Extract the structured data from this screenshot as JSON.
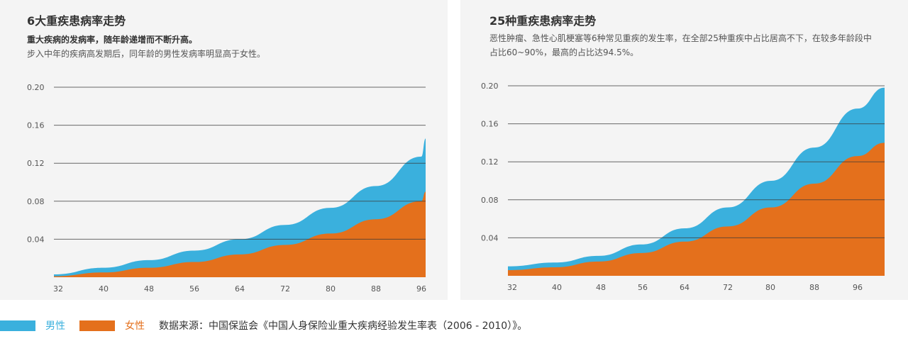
{
  "panels": [
    {
      "title": "6大重疾患病率走势",
      "subtitle_bold": "重大疾病的发病率，随年龄递增而不断升高。",
      "subtitle": "步入中年的疾病高发期后，同年龄的男性发病率明显高于女性。"
    },
    {
      "title": "25种重疾患病率走势",
      "subtitle_bold": "",
      "subtitle": "恶性肿瘤、急性心肌梗塞等6种常见重疾的发生率，在全部25种重疾中占比居高不下，在较多年龄段中占比60~90%，最高的占比达94.5%。"
    }
  ],
  "legend": {
    "male_label": "男性",
    "female_label": "女性",
    "source": "数据来源：中国保监会《中国人身保险业重大疾病经验发生率表（2006 - 2010）》。"
  },
  "colors": {
    "male": "#3ab0dd",
    "female": "#e4701c"
  },
  "chart_data": [
    {
      "type": "area",
      "title": "6大重疾患病率走势",
      "x": [
        32,
        40,
        48,
        56,
        64,
        72,
        80,
        88,
        96
      ],
      "x_ticks": [
        "32",
        "40",
        "48",
        "56",
        "64",
        "72",
        "80",
        "88",
        "96"
      ],
      "y_ticks": [
        "0.04",
        "0.08",
        "0.12",
        "0.16",
        "0.20"
      ],
      "ylim": [
        0,
        0.2
      ],
      "xlim": [
        32,
        97
      ],
      "grid": true,
      "series": [
        {
          "name": "男性",
          "values": [
            0.003,
            0.01,
            0.018,
            0.028,
            0.04,
            0.055,
            0.073,
            0.096,
            0.127
          ]
        },
        {
          "name": "女性",
          "values": [
            0.001,
            0.005,
            0.01,
            0.016,
            0.024,
            0.034,
            0.046,
            0.061,
            0.08
          ]
        }
      ],
      "end_values": {
        "男性": 0.146,
        "女性": 0.09
      }
    },
    {
      "type": "area",
      "title": "25种重疾患病率走势",
      "x": [
        32,
        40,
        48,
        56,
        64,
        72,
        80,
        88,
        96
      ],
      "x_ticks": [
        "32",
        "40",
        "48",
        "56",
        "64",
        "72",
        "80",
        "88",
        "96"
      ],
      "y_ticks": [
        "0.04",
        "0.08",
        "0.12",
        "0.16",
        "0.20"
      ],
      "ylim": [
        0,
        0.2
      ],
      "xlim": [
        32,
        99
      ],
      "grid": true,
      "series": [
        {
          "name": "男性",
          "values": [
            0.01,
            0.014,
            0.021,
            0.033,
            0.05,
            0.072,
            0.1,
            0.135,
            0.176
          ]
        },
        {
          "name": "女性",
          "values": [
            0.006,
            0.009,
            0.015,
            0.024,
            0.036,
            0.052,
            0.072,
            0.097,
            0.126
          ]
        }
      ],
      "end_values": {
        "男性": 0.198,
        "女性": 0.14
      }
    }
  ]
}
